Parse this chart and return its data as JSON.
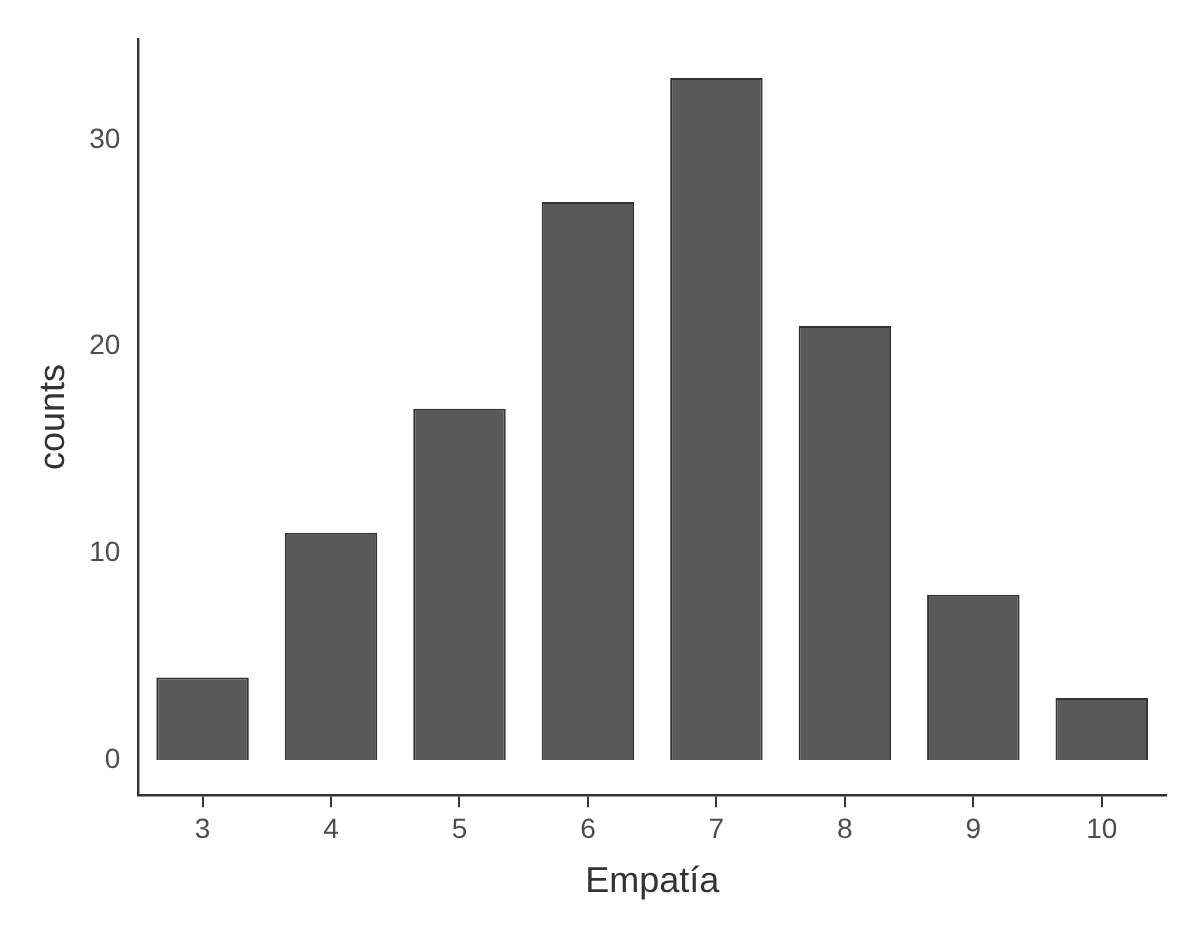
{
  "chart_data": {
    "type": "bar",
    "xlabel": "Empatía",
    "ylabel": "counts",
    "categories": [
      "3",
      "4",
      "5",
      "6",
      "7",
      "8",
      "9",
      "10"
    ],
    "values": [
      4,
      11,
      17,
      27,
      33,
      21,
      8,
      3
    ],
    "color": "#595959",
    "ylim": [
      -1.7,
      34.9
    ],
    "yticks": [
      0,
      10,
      20,
      30
    ],
    "grid": false,
    "legend": false
  }
}
